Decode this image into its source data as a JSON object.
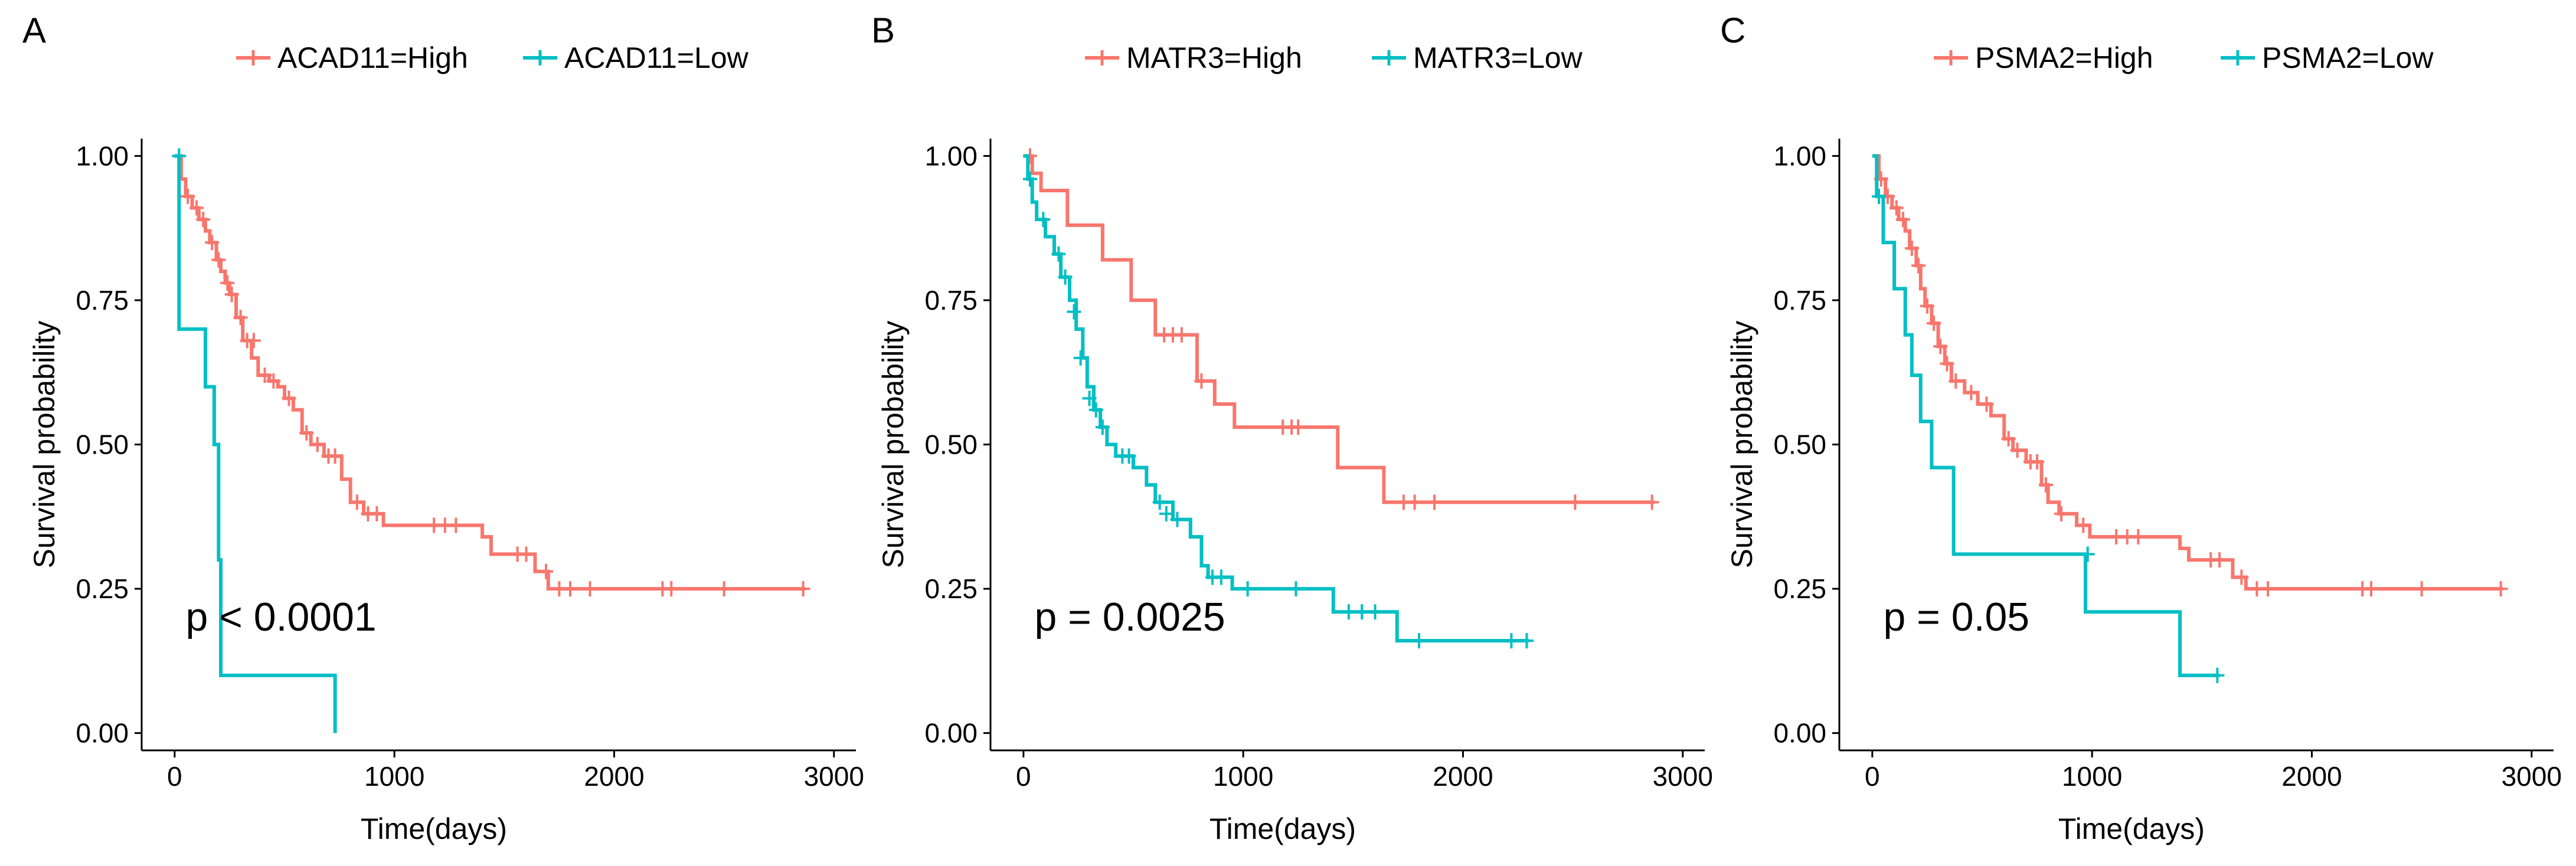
{
  "figure": {
    "colors": {
      "high": "#F8766D",
      "low": "#00BFC4",
      "axis": "#000000"
    }
  },
  "chart_data": [
    {
      "type": "line",
      "panel_label": "A",
      "xlabel": "Time(days)",
      "ylabel": "Survival probability",
      "xlim": [
        -150,
        3100
      ],
      "ylim": [
        -0.03,
        1.03
      ],
      "xticks": [
        0,
        1000,
        2000,
        3000
      ],
      "xtick_labels": [
        "0",
        "1000",
        "2000",
        "3000"
      ],
      "yticks": [
        0,
        0.25,
        0.5,
        0.75,
        1
      ],
      "ytick_labels": [
        "0.00",
        "0.25",
        "0.50",
        "0.75",
        "1.00"
      ],
      "legend": [
        "ACAD11=High",
        "ACAD11=Low"
      ],
      "annotation": "p < 0.0001",
      "series": [
        {
          "name": "ACAD11=High",
          "steps": [
            [
              0,
              1
            ],
            [
              30,
              0.96
            ],
            [
              50,
              0.93
            ],
            [
              80,
              0.91
            ],
            [
              110,
              0.89
            ],
            [
              140,
              0.87
            ],
            [
              160,
              0.85
            ],
            [
              190,
              0.82
            ],
            [
              210,
              0.8
            ],
            [
              230,
              0.78
            ],
            [
              250,
              0.76
            ],
            [
              280,
              0.72
            ],
            [
              310,
              0.68
            ],
            [
              350,
              0.65
            ],
            [
              380,
              0.62
            ],
            [
              430,
              0.61
            ],
            [
              470,
              0.6
            ],
            [
              500,
              0.58
            ],
            [
              540,
              0.56
            ],
            [
              580,
              0.52
            ],
            [
              620,
              0.5
            ],
            [
              680,
              0.48
            ],
            [
              760,
              0.44
            ],
            [
              800,
              0.4
            ],
            [
              860,
              0.38
            ],
            [
              950,
              0.36
            ],
            [
              1400,
              0.34
            ],
            [
              1440,
              0.31
            ],
            [
              1640,
              0.28
            ],
            [
              1700,
              0.25
            ]
          ],
          "end": 2870,
          "censor": [
            [
              60,
              0.93
            ],
            [
              100,
              0.91
            ],
            [
              130,
              0.89
            ],
            [
              170,
              0.85
            ],
            [
              200,
              0.82
            ],
            [
              240,
              0.78
            ],
            [
              260,
              0.76
            ],
            [
              300,
              0.72
            ],
            [
              330,
              0.68
            ],
            [
              360,
              0.68
            ],
            [
              410,
              0.62
            ],
            [
              450,
              0.61
            ],
            [
              520,
              0.58
            ],
            [
              600,
              0.52
            ],
            [
              650,
              0.5
            ],
            [
              700,
              0.48
            ],
            [
              730,
              0.48
            ],
            [
              830,
              0.4
            ],
            [
              880,
              0.38
            ],
            [
              920,
              0.38
            ],
            [
              1180,
              0.36
            ],
            [
              1230,
              0.36
            ],
            [
              1280,
              0.36
            ],
            [
              1560,
              0.31
            ],
            [
              1600,
              0.31
            ],
            [
              1690,
              0.28
            ],
            [
              1750,
              0.25
            ],
            [
              1800,
              0.25
            ],
            [
              1890,
              0.25
            ],
            [
              2220,
              0.25
            ],
            [
              2260,
              0.25
            ],
            [
              2500,
              0.25
            ],
            [
              2860,
              0.25
            ]
          ]
        },
        {
          "name": "ACAD11=Low",
          "steps": [
            [
              0,
              1
            ],
            [
              20,
              0.7
            ],
            [
              140,
              0.6
            ],
            [
              180,
              0.5
            ],
            [
              200,
              0.3
            ],
            [
              210,
              0.1
            ],
            [
              730,
              0.0
            ]
          ],
          "end": 730,
          "censor": [
            [
              20,
              1.0
            ]
          ]
        }
      ]
    },
    {
      "type": "line",
      "panel_label": "B",
      "xlabel": "Time(days)",
      "ylabel": "Survival probability",
      "xlim": [
        -150,
        3100
      ],
      "ylim": [
        -0.03,
        1.03
      ],
      "xticks": [
        0,
        1000,
        2000,
        3000
      ],
      "xtick_labels": [
        "0",
        "1000",
        "2000",
        "3000"
      ],
      "yticks": [
        0,
        0.25,
        0.5,
        0.75,
        1
      ],
      "ytick_labels": [
        "0.00",
        "0.25",
        "0.50",
        "0.75",
        "1.00"
      ],
      "legend": [
        "MATR3=High",
        "MATR3=Low"
      ],
      "annotation": "p = 0.0025",
      "series": [
        {
          "name": "MATR3=High",
          "steps": [
            [
              0,
              1
            ],
            [
              40,
              0.97
            ],
            [
              80,
              0.94
            ],
            [
              200,
              0.88
            ],
            [
              360,
              0.82
            ],
            [
              490,
              0.75
            ],
            [
              600,
              0.69
            ],
            [
              790,
              0.61
            ],
            [
              870,
              0.57
            ],
            [
              960,
              0.53
            ],
            [
              1430,
              0.46
            ],
            [
              1640,
              0.4
            ]
          ],
          "end": 2870,
          "censor": [
            [
              30,
              1.0
            ],
            [
              640,
              0.69
            ],
            [
              680,
              0.69
            ],
            [
              720,
              0.69
            ],
            [
              810,
              0.61
            ],
            [
              1180,
              0.53
            ],
            [
              1220,
              0.53
            ],
            [
              1250,
              0.53
            ],
            [
              1730,
              0.4
            ],
            [
              1780,
              0.4
            ],
            [
              1870,
              0.4
            ],
            [
              2510,
              0.4
            ],
            [
              2860,
              0.4
            ]
          ]
        },
        {
          "name": "MATR3=Low",
          "steps": [
            [
              0,
              1
            ],
            [
              20,
              0.96
            ],
            [
              40,
              0.92
            ],
            [
              60,
              0.89
            ],
            [
              100,
              0.86
            ],
            [
              140,
              0.83
            ],
            [
              170,
              0.79
            ],
            [
              210,
              0.75
            ],
            [
              240,
              0.7
            ],
            [
              270,
              0.65
            ],
            [
              290,
              0.6
            ],
            [
              320,
              0.56
            ],
            [
              350,
              0.53
            ],
            [
              380,
              0.5
            ],
            [
              420,
              0.48
            ],
            [
              500,
              0.46
            ],
            [
              560,
              0.43
            ],
            [
              600,
              0.4
            ],
            [
              680,
              0.37
            ],
            [
              760,
              0.34
            ],
            [
              810,
              0.29
            ],
            [
              840,
              0.27
            ],
            [
              950,
              0.25
            ],
            [
              1410,
              0.21
            ],
            [
              1700,
              0.16
            ]
          ],
          "end": 2300,
          "censor": [
            [
              30,
              0.96
            ],
            [
              90,
              0.89
            ],
            [
              160,
              0.83
            ],
            [
              190,
              0.79
            ],
            [
              230,
              0.73
            ],
            [
              260,
              0.65
            ],
            [
              300,
              0.58
            ],
            [
              330,
              0.56
            ],
            [
              360,
              0.53
            ],
            [
              450,
              0.48
            ],
            [
              480,
              0.48
            ],
            [
              620,
              0.4
            ],
            [
              650,
              0.38
            ],
            [
              700,
              0.37
            ],
            [
              860,
              0.27
            ],
            [
              900,
              0.27
            ],
            [
              1020,
              0.25
            ],
            [
              1240,
              0.25
            ],
            [
              1480,
              0.21
            ],
            [
              1540,
              0.21
            ],
            [
              1600,
              0.21
            ],
            [
              1800,
              0.16
            ],
            [
              2220,
              0.16
            ],
            [
              2290,
              0.16
            ]
          ]
        }
      ]
    },
    {
      "type": "line",
      "panel_label": "C",
      "xlabel": "Time(days)",
      "ylabel": "Survival probability",
      "xlim": [
        -150,
        3100
      ],
      "ylim": [
        -0.03,
        1.03
      ],
      "xticks": [
        0,
        1000,
        2000,
        3000
      ],
      "xtick_labels": [
        "0",
        "1000",
        "2000",
        "3000"
      ],
      "yticks": [
        0,
        0.25,
        0.5,
        0.75,
        1
      ],
      "ytick_labels": [
        "0.00",
        "0.25",
        "0.50",
        "0.75",
        "1.00"
      ],
      "legend": [
        "PSMA2=High",
        "PSMA2=Low"
      ],
      "annotation": "p = 0.05",
      "series": [
        {
          "name": "PSMA2=High",
          "steps": [
            [
              0,
              1
            ],
            [
              30,
              0.96
            ],
            [
              60,
              0.93
            ],
            [
              90,
              0.91
            ],
            [
              120,
              0.89
            ],
            [
              150,
              0.87
            ],
            [
              170,
              0.84
            ],
            [
              200,
              0.81
            ],
            [
              220,
              0.77
            ],
            [
              240,
              0.74
            ],
            [
              270,
              0.71
            ],
            [
              300,
              0.67
            ],
            [
              330,
              0.64
            ],
            [
              360,
              0.61
            ],
            [
              420,
              0.59
            ],
            [
              480,
              0.57
            ],
            [
              540,
              0.55
            ],
            [
              600,
              0.51
            ],
            [
              640,
              0.49
            ],
            [
              700,
              0.47
            ],
            [
              770,
              0.43
            ],
            [
              800,
              0.4
            ],
            [
              850,
              0.38
            ],
            [
              930,
              0.36
            ],
            [
              990,
              0.34
            ],
            [
              1400,
              0.32
            ],
            [
              1440,
              0.3
            ],
            [
              1640,
              0.27
            ],
            [
              1700,
              0.25
            ]
          ],
          "end": 2870,
          "censor": [
            [
              40,
              0.96
            ],
            [
              70,
              0.93
            ],
            [
              110,
              0.91
            ],
            [
              140,
              0.89
            ],
            [
              180,
              0.84
            ],
            [
              210,
              0.81
            ],
            [
              250,
              0.74
            ],
            [
              280,
              0.71
            ],
            [
              310,
              0.67
            ],
            [
              340,
              0.64
            ],
            [
              380,
              0.61
            ],
            [
              450,
              0.59
            ],
            [
              520,
              0.57
            ],
            [
              620,
              0.51
            ],
            [
              660,
              0.49
            ],
            [
              720,
              0.47
            ],
            [
              750,
              0.47
            ],
            [
              790,
              0.43
            ],
            [
              860,
              0.38
            ],
            [
              960,
              0.36
            ],
            [
              1110,
              0.34
            ],
            [
              1160,
              0.34
            ],
            [
              1210,
              0.34
            ],
            [
              1540,
              0.3
            ],
            [
              1580,
              0.3
            ],
            [
              1680,
              0.27
            ],
            [
              1750,
              0.25
            ],
            [
              1800,
              0.25
            ],
            [
              2230,
              0.25
            ],
            [
              2270,
              0.25
            ],
            [
              2500,
              0.25
            ],
            [
              2860,
              0.25
            ]
          ]
        },
        {
          "name": "PSMA2=Low",
          "steps": [
            [
              0,
              1
            ],
            [
              20,
              0.93
            ],
            [
              50,
              0.85
            ],
            [
              100,
              0.77
            ],
            [
              150,
              0.69
            ],
            [
              180,
              0.62
            ],
            [
              220,
              0.54
            ],
            [
              270,
              0.46
            ],
            [
              370,
              0.31
            ],
            [
              970,
              0.21
            ],
            [
              1400,
              0.1
            ]
          ],
          "end": 1580,
          "censor": [
            [
              30,
              0.93
            ],
            [
              980,
              0.31
            ],
            [
              1570,
              0.1
            ]
          ]
        }
      ]
    }
  ]
}
